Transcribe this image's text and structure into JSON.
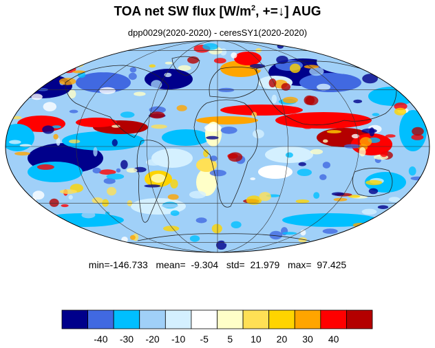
{
  "title": {
    "prefix": "TOA net SW flux [W/m",
    "superscript": "2",
    "middle": ", +=",
    "arrow": "↓",
    "suffix": "]  AUG"
  },
  "subtitle": "dpp0029(2020-2020) - ceresSY1(2020-2020)",
  "stats": {
    "min_label": "min=",
    "min": "-146.733",
    "mean_label": "mean=",
    "mean": "-9.304",
    "std_label": "std=",
    "std": "21.979",
    "max_label": "max=",
    "max": "97.425"
  },
  "colorbar": {
    "colors": [
      "#00008b",
      "#4169e1",
      "#00bfff",
      "#a0d0f8",
      "#d4f0ff",
      "#ffffff",
      "#ffffc8",
      "#ffe055",
      "#ffd400",
      "#ffa500",
      "#ff0000",
      "#b40000"
    ],
    "tick_labels": [
      "-40",
      "-30",
      "-20",
      "-10",
      "-5",
      "5",
      "10",
      "20",
      "30",
      "40"
    ]
  },
  "map": {
    "projection": "mollweide",
    "central_longitude": 0,
    "grid_lines": true,
    "colors": {
      "ocean_base": "#a0d0f8",
      "grid": "#333333",
      "coast": "#222222"
    }
  }
}
